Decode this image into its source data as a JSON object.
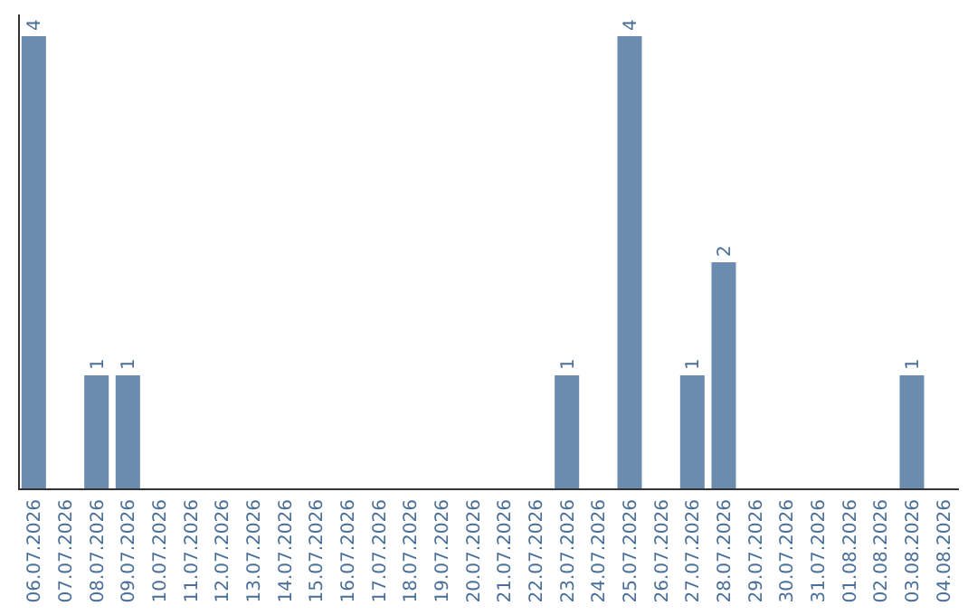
{
  "chart_data": {
    "type": "bar",
    "categories": [
      "06.07.2026",
      "07.07.2026",
      "08.07.2026",
      "09.07.2026",
      "10.07.2026",
      "11.07.2026",
      "12.07.2026",
      "13.07.2026",
      "14.07.2026",
      "15.07.2026",
      "16.07.2026",
      "17.07.2026",
      "18.07.2026",
      "19.07.2026",
      "20.07.2026",
      "21.07.2026",
      "22.07.2026",
      "23.07.2026",
      "24.07.2026",
      "25.07.2026",
      "26.07.2026",
      "27.07.2026",
      "28.07.2026",
      "29.07.2026",
      "30.07.2026",
      "31.07.2026",
      "01.08.2026",
      "02.08.2026",
      "03.08.2026",
      "04.08.2026"
    ],
    "values": [
      4,
      0,
      1,
      1,
      0,
      0,
      0,
      0,
      0,
      0,
      0,
      0,
      0,
      0,
      0,
      0,
      0,
      1,
      0,
      4,
      0,
      1,
      2,
      0,
      0,
      0,
      0,
      0,
      1,
      0
    ],
    "value_labels": [
      "4",
      null,
      "1",
      "1",
      null,
      null,
      null,
      null,
      null,
      null,
      null,
      null,
      null,
      null,
      null,
      null,
      null,
      "1",
      null,
      "4",
      null,
      "1",
      "2",
      null,
      null,
      null,
      null,
      null,
      "1",
      null
    ],
    "color": "#6b8cae",
    "ylim": [
      0,
      4
    ],
    "tick_labels": "x"
  }
}
